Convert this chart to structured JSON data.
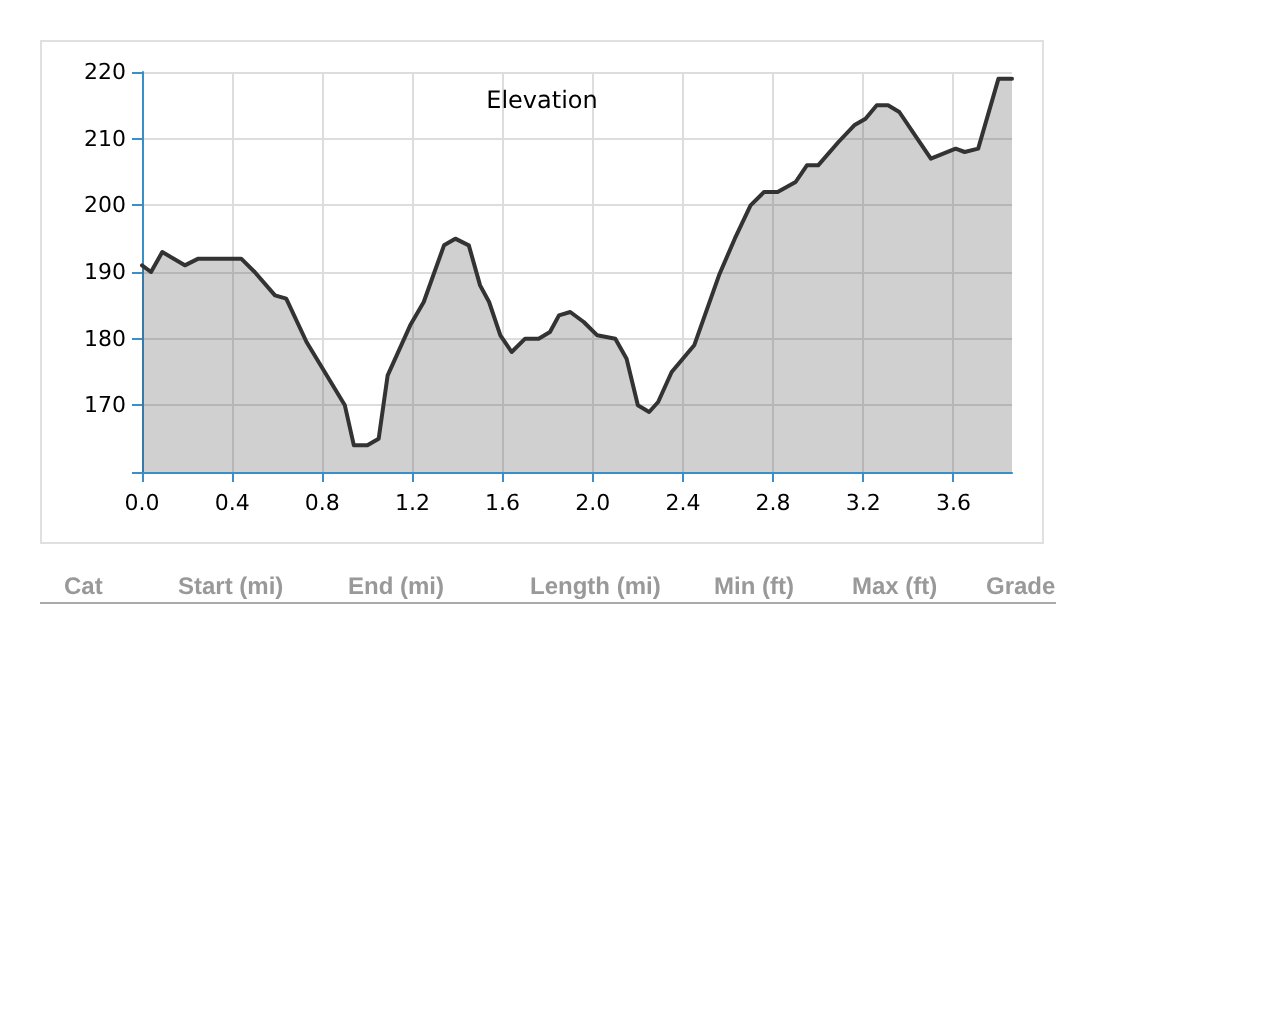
{
  "chart_data": [
    {
      "type": "area",
      "title": "Elevation",
      "x": [
        0,
        0.04,
        0.09,
        0.19,
        0.25,
        0.44,
        0.5,
        0.59,
        0.64,
        0.73,
        0.9,
        0.94,
        1.0,
        1.05,
        1.09,
        1.19,
        1.25,
        1.34,
        1.39,
        1.45,
        1.5,
        1.54,
        1.59,
        1.64,
        1.7,
        1.76,
        1.81,
        1.85,
        1.9,
        1.96,
        2.02,
        2.1,
        2.15,
        2.2,
        2.25,
        2.29,
        2.35,
        2.45,
        2.56,
        2.63,
        2.7,
        2.76,
        2.82,
        2.9,
        2.95,
        3.0,
        3.09,
        3.16,
        3.21,
        3.26,
        3.31,
        3.36,
        3.43,
        3.5,
        3.61,
        3.65,
        3.71,
        3.8,
        3.86
      ],
      "series": [
        {
          "color": "#333333",
          "values": [
            191,
            190,
            193,
            191,
            192,
            192,
            190,
            186.5,
            186,
            179.5,
            170,
            164,
            164,
            165,
            174.5,
            182,
            185.5,
            194,
            195,
            194,
            188,
            185.5,
            180.5,
            178,
            180,
            180,
            181,
            183.5,
            184,
            182.5,
            180.5,
            180,
            177,
            170,
            169,
            170.5,
            175,
            179,
            189.5,
            195,
            200,
            202,
            202,
            203.5,
            206,
            206,
            209.5,
            212,
            213,
            215,
            215,
            214,
            210.5,
            207,
            208.5,
            208,
            208.5,
            219,
            219
          ]
        }
      ],
      "xlim": [
        0,
        3.86
      ],
      "xticks": [
        {
          "value": 0,
          "label": "0.0"
        },
        0.4,
        0.8,
        1.2,
        1.6,
        {
          "value": 2,
          "label": "2.0"
        },
        2.4,
        2.8,
        3.2,
        3.6
      ],
      "ylim": [
        160,
        220
      ],
      "yticks": [
        {
          "value": 160,
          "label": null
        },
        170,
        180,
        190,
        200,
        210,
        220
      ],
      "grid": true,
      "marker": "none",
      "line_style": "solid"
    },
    {
      "type": "other",
      "categories": [
        "Cat",
        "Start (mi)",
        "End (mi)",
        "Length (mi)",
        "Min (ft)",
        "Max (ft)",
        "Grade"
      ]
    }
  ]
}
